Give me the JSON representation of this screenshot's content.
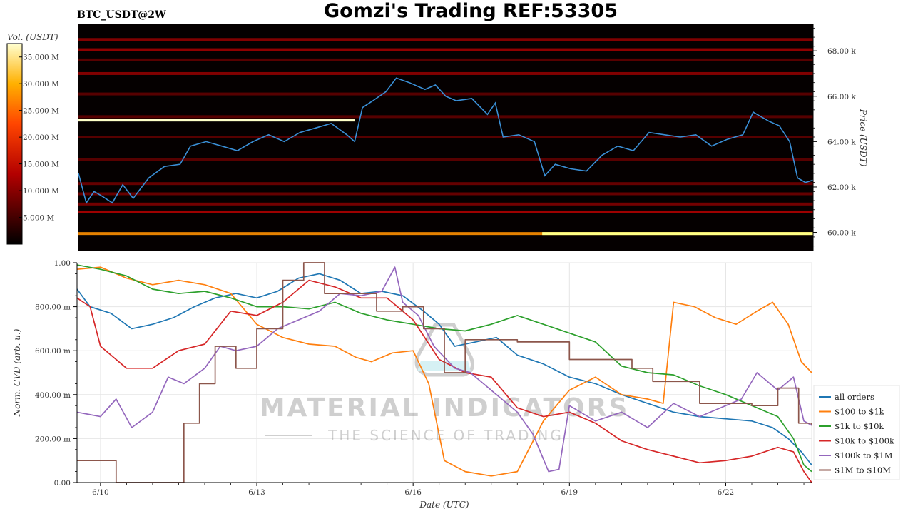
{
  "title": "Gomzi's Trading REF:53305",
  "symbol": "BTC_USDT@2W",
  "colorbar": {
    "label": "Vol. (USDT)",
    "ticks": [
      "5.000 M",
      "10.000 M",
      "15.000 M",
      "20.000 M",
      "25.000 M",
      "30.000 M",
      "35.000 M"
    ],
    "tick_values": [
      5,
      10,
      15,
      20,
      25,
      30,
      35
    ],
    "range": [
      0,
      37.5
    ]
  },
  "watermark": {
    "line1": "MATERIAL INDICATORS",
    "line2": "THE SCIENCE OF TRADING"
  },
  "chart_data": [
    {
      "type": "heatmap",
      "ylabel": "Price (USDT)",
      "ylim": [
        59200,
        69200
      ],
      "ytick_values": [
        60000,
        62000,
        64000,
        66000,
        68000
      ],
      "yticks": [
        "60.00 k",
        "62.00 k",
        "64.00 k",
        "66.00 k",
        "68.00 k"
      ],
      "xlim": [
        9.55,
        23.65
      ],
      "price_series": {
        "name": "price",
        "color": "#3a8fd6",
        "x": [
          9.55,
          9.7,
          9.85,
          10.0,
          10.2,
          10.4,
          10.6,
          10.9,
          11.2,
          11.5,
          11.7,
          12.0,
          12.3,
          12.6,
          12.9,
          13.2,
          13.5,
          13.8,
          14.1,
          14.4,
          14.7,
          14.85,
          15.0,
          15.2,
          15.45,
          15.65,
          15.9,
          16.2,
          16.4,
          16.6,
          16.8,
          17.1,
          17.4,
          17.55,
          17.7,
          18.0,
          18.3,
          18.5,
          18.7,
          19.0,
          19.3,
          19.6,
          19.9,
          20.2,
          20.5,
          20.8,
          21.1,
          21.4,
          21.7,
          22.0,
          22.3,
          22.5,
          22.65,
          22.8,
          23.0,
          23.2,
          23.35,
          23.5,
          23.65
        ],
        "y": [
          62600,
          61300,
          61800,
          61600,
          61300,
          62100,
          61500,
          62400,
          62900,
          63000,
          63800,
          64000,
          63800,
          63600,
          64000,
          64300,
          64000,
          64400,
          64600,
          64800,
          64300,
          64000,
          65500,
          65800,
          66200,
          66800,
          66600,
          66300,
          66500,
          66000,
          65800,
          65900,
          65200,
          65700,
          64200,
          64300,
          64000,
          62500,
          63000,
          62800,
          62700,
          63400,
          63800,
          63600,
          64400,
          64300,
          64200,
          64300,
          63800,
          64100,
          64300,
          65300,
          65100,
          64900,
          64700,
          64000,
          62400,
          62200,
          62300
        ]
      },
      "level_bands": [
        {
          "price": 59950,
          "intensity": 0.9
        },
        {
          "price": 60900,
          "intensity": 0.55
        },
        {
          "price": 61250,
          "intensity": 0.4
        },
        {
          "price": 61700,
          "intensity": 0.35
        },
        {
          "price": 62150,
          "intensity": 0.35
        },
        {
          "price": 63200,
          "intensity": 0.3
        },
        {
          "price": 64200,
          "intensity": 0.3
        },
        {
          "price": 65100,
          "intensity": 0.3
        },
        {
          "price": 66100,
          "intensity": 0.3
        },
        {
          "price": 67000,
          "intensity": 0.45
        },
        {
          "price": 67600,
          "intensity": 0.3
        },
        {
          "price": 68050,
          "intensity": 0.5
        },
        {
          "price": 68500,
          "intensity": 0.45
        }
      ],
      "highlight_segments": [
        {
          "x0": 9.55,
          "x1": 14.85,
          "price": 64950,
          "intensity": 1.0
        },
        {
          "x0": 18.45,
          "x1": 23.65,
          "price": 59950,
          "intensity": 0.95
        }
      ]
    },
    {
      "type": "line",
      "xlabel": "Date (UTC)",
      "ylabel": "Norm. CVD (arb. u.)",
      "ylim": [
        0,
        1
      ],
      "xlim": [
        9.55,
        23.65
      ],
      "ytick_values": [
        0,
        0.2,
        0.4,
        0.6,
        0.8,
        1.0
      ],
      "yticks": [
        "0.00",
        "200.00 m",
        "400.00 m",
        "600.00 m",
        "800.00 m",
        "1.00"
      ],
      "xtick_values": [
        10,
        13,
        16,
        19,
        22
      ],
      "xticks": [
        "6/10",
        "6/13",
        "6/16",
        "6/19",
        "6/22"
      ],
      "grid": true,
      "legend_position": "right",
      "series": [
        {
          "name": "all orders",
          "color": "#1f77b4",
          "step": false,
          "x": [
            9.55,
            9.8,
            10.2,
            10.6,
            11.0,
            11.4,
            11.8,
            12.2,
            12.6,
            13.0,
            13.4,
            13.8,
            14.2,
            14.6,
            15.0,
            15.4,
            15.8,
            16.2,
            16.5,
            16.8,
            17.2,
            17.6,
            18.0,
            18.5,
            19.0,
            19.5,
            20.0,
            20.5,
            21.0,
            21.5,
            22.0,
            22.5,
            22.9,
            23.2,
            23.45,
            23.65
          ],
          "y": [
            0.88,
            0.8,
            0.77,
            0.7,
            0.72,
            0.75,
            0.8,
            0.84,
            0.86,
            0.84,
            0.87,
            0.93,
            0.95,
            0.92,
            0.86,
            0.87,
            0.85,
            0.78,
            0.72,
            0.62,
            0.64,
            0.66,
            0.58,
            0.54,
            0.48,
            0.45,
            0.4,
            0.36,
            0.32,
            0.3,
            0.29,
            0.28,
            0.25,
            0.2,
            0.14,
            0.08
          ]
        },
        {
          "name": "$100 to $1k",
          "color": "#ff7f0e",
          "step": false,
          "x": [
            9.55,
            10.0,
            10.5,
            11.0,
            11.5,
            12.0,
            12.5,
            13.0,
            13.5,
            14.0,
            14.5,
            14.9,
            15.2,
            15.6,
            16.0,
            16.3,
            16.6,
            17.0,
            17.5,
            18.0,
            18.5,
            19.0,
            19.5,
            20.0,
            20.5,
            20.8,
            21.0,
            21.4,
            21.8,
            22.2,
            22.6,
            22.9,
            23.2,
            23.45,
            23.65
          ],
          "y": [
            0.97,
            0.98,
            0.93,
            0.9,
            0.92,
            0.9,
            0.86,
            0.72,
            0.66,
            0.63,
            0.62,
            0.57,
            0.55,
            0.59,
            0.6,
            0.45,
            0.1,
            0.05,
            0.03,
            0.05,
            0.28,
            0.42,
            0.48,
            0.4,
            0.38,
            0.36,
            0.82,
            0.8,
            0.75,
            0.72,
            0.78,
            0.82,
            0.72,
            0.55,
            0.5
          ]
        },
        {
          "name": "$1k to $10k",
          "color": "#2ca02c",
          "step": false,
          "x": [
            9.55,
            10.0,
            10.5,
            11.0,
            11.5,
            12.0,
            12.5,
            13.0,
            13.5,
            14.0,
            14.5,
            15.0,
            15.5,
            16.0,
            16.5,
            17.0,
            17.5,
            18.0,
            18.5,
            19.0,
            19.5,
            20.0,
            20.5,
            21.0,
            21.5,
            22.0,
            22.5,
            23.0,
            23.3,
            23.5,
            23.65
          ],
          "y": [
            0.99,
            0.97,
            0.94,
            0.88,
            0.86,
            0.87,
            0.84,
            0.8,
            0.8,
            0.79,
            0.82,
            0.77,
            0.74,
            0.72,
            0.7,
            0.69,
            0.72,
            0.76,
            0.72,
            0.68,
            0.64,
            0.53,
            0.5,
            0.49,
            0.44,
            0.4,
            0.35,
            0.3,
            0.2,
            0.08,
            0.05
          ]
        },
        {
          "name": "$10k to $100k",
          "color": "#d62728",
          "step": false,
          "x": [
            9.55,
            9.8,
            10.0,
            10.5,
            11.0,
            11.5,
            12.0,
            12.5,
            13.0,
            13.5,
            14.0,
            14.5,
            15.0,
            15.5,
            16.0,
            16.5,
            17.0,
            17.5,
            18.0,
            18.5,
            19.0,
            19.5,
            20.0,
            20.5,
            21.0,
            21.5,
            22.0,
            22.5,
            23.0,
            23.3,
            23.5,
            23.65
          ],
          "y": [
            0.84,
            0.8,
            0.62,
            0.52,
            0.52,
            0.6,
            0.63,
            0.78,
            0.76,
            0.82,
            0.92,
            0.89,
            0.84,
            0.84,
            0.74,
            0.56,
            0.5,
            0.48,
            0.34,
            0.3,
            0.32,
            0.27,
            0.19,
            0.15,
            0.12,
            0.09,
            0.1,
            0.12,
            0.16,
            0.14,
            0.05,
            0.0
          ]
        },
        {
          "name": "$100k to $1M",
          "color": "#9467bd",
          "step": false,
          "x": [
            9.55,
            10.0,
            10.3,
            10.6,
            11.0,
            11.3,
            11.6,
            12.0,
            12.3,
            12.6,
            13.0,
            13.4,
            13.8,
            14.2,
            14.6,
            15.0,
            15.4,
            15.65,
            15.8,
            16.1,
            16.4,
            16.8,
            17.1,
            17.5,
            18.0,
            18.3,
            18.6,
            18.8,
            19.0,
            19.5,
            20.0,
            20.5,
            21.0,
            21.5,
            22.0,
            22.3,
            22.6,
            23.0,
            23.3,
            23.5,
            23.65
          ],
          "y": [
            0.32,
            0.3,
            0.38,
            0.25,
            0.32,
            0.48,
            0.45,
            0.52,
            0.62,
            0.6,
            0.62,
            0.7,
            0.74,
            0.78,
            0.86,
            0.85,
            0.87,
            0.98,
            0.82,
            0.76,
            0.62,
            0.52,
            0.5,
            0.42,
            0.32,
            0.22,
            0.05,
            0.06,
            0.35,
            0.28,
            0.32,
            0.25,
            0.36,
            0.3,
            0.35,
            0.38,
            0.5,
            0.42,
            0.48,
            0.28,
            0.26
          ]
        },
        {
          "name": "$1M to $10M",
          "color": "#8c564b",
          "step": true,
          "x": [
            9.55,
            9.9,
            10.3,
            11.2,
            11.6,
            11.9,
            12.2,
            12.6,
            13.0,
            13.5,
            13.9,
            14.3,
            14.8,
            15.3,
            15.8,
            16.2,
            16.6,
            17.0,
            17.5,
            18.0,
            18.5,
            19.0,
            19.6,
            20.2,
            20.6,
            21.0,
            21.5,
            22.0,
            22.5,
            23.0,
            23.4,
            23.65
          ],
          "y": [
            0.1,
            0.1,
            0.0,
            0.0,
            0.27,
            0.45,
            0.62,
            0.52,
            0.7,
            0.92,
            1.0,
            0.86,
            0.86,
            0.78,
            0.8,
            0.7,
            0.5,
            0.65,
            0.65,
            0.64,
            0.64,
            0.56,
            0.56,
            0.52,
            0.46,
            0.46,
            0.36,
            0.36,
            0.35,
            0.43,
            0.27,
            0.26
          ]
        }
      ]
    }
  ]
}
